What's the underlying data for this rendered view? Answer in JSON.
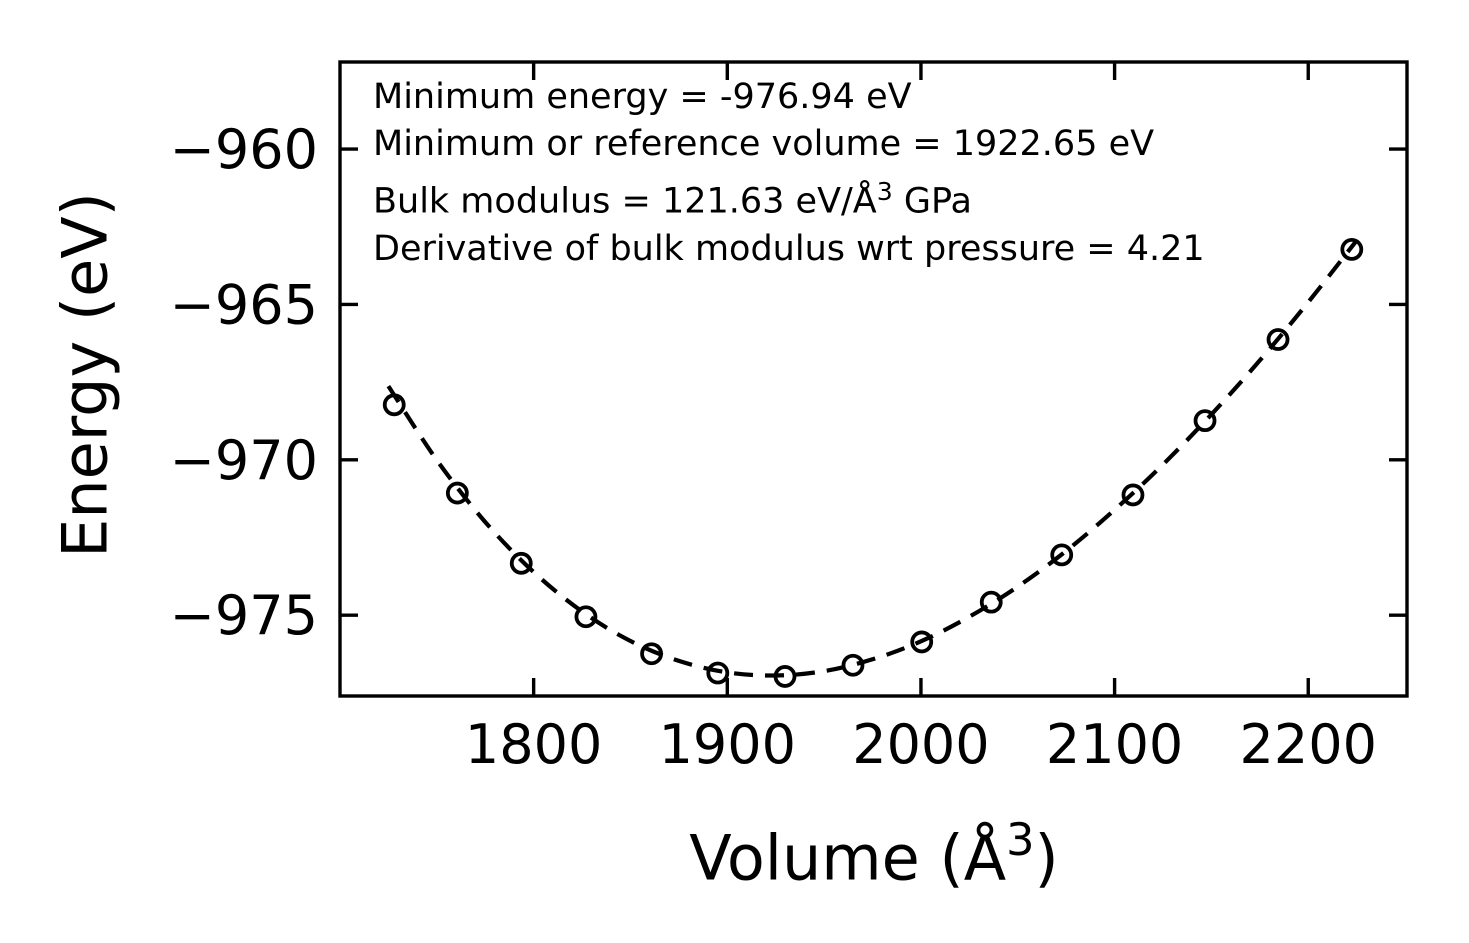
{
  "figure": {
    "ylabel": "Energy (eV)",
    "xlabel_prefix": "Volume (Å",
    "xlabel_sup": "3",
    "xlabel_suffix": ")",
    "annotation": {
      "line1": "Minimum energy = -976.94 eV",
      "line2": "Minimum or reference volume = 1922.65 eV",
      "line3_prefix": "Bulk modulus = 121.63 eV/Å",
      "line3_sup": "3",
      "line3_suffix": " GPa",
      "line4": "Derivative of bulk modulus wrt pressure = 4.21"
    },
    "line_color": "#000000",
    "background_color": "#ffffff"
  },
  "chart_data": {
    "type": "scatter",
    "title": "",
    "xlabel": "Volume (Å³)",
    "ylabel": "Energy (eV)",
    "xlim": [
      1700,
      2251
    ],
    "ylim": [
      -977.6,
      -957.2
    ],
    "grid": false,
    "legend": null,
    "xticks": [
      {
        "value": 1800,
        "label": "1800"
      },
      {
        "value": 1900,
        "label": "1900"
      },
      {
        "value": 2000,
        "label": "2000"
      },
      {
        "value": 2100,
        "label": "2100"
      },
      {
        "value": 2200,
        "label": "2200"
      }
    ],
    "yticks": [
      {
        "value": -960,
        "label": "−960"
      },
      {
        "value": -965,
        "label": "−965"
      },
      {
        "value": -970,
        "label": "−970"
      },
      {
        "value": -975,
        "label": "−975"
      }
    ],
    "series": [
      {
        "name": "calculated-energies",
        "type": "scatter",
        "marker": "open-circle",
        "color": "#000000",
        "x": [
          1728.0,
          1760.6,
          1793.6,
          1827.0,
          1860.9,
          1895.1,
          1929.8,
          1964.9,
          2000.4,
          2036.3,
          2072.7,
          2109.5,
          2146.7,
          2184.4,
          2222.5
        ],
        "y": [
          -968.23,
          -971.07,
          -973.33,
          -975.05,
          -976.24,
          -976.86,
          -976.97,
          -976.61,
          -975.86,
          -974.58,
          -973.06,
          -971.13,
          -968.74,
          -966.13,
          -963.23
        ]
      },
      {
        "name": "eos-fit-curve",
        "type": "line",
        "linestyle": "dashed",
        "color": "#000000",
        "x": [
          1725,
          1750,
          1775,
          1800,
          1825,
          1850,
          1875,
          1900,
          1925,
          1950,
          1975,
          2000,
          2025,
          2050,
          2075,
          2100,
          2125,
          2150,
          2175,
          2200,
          2225
        ],
        "y": [
          -967.63,
          -970.01,
          -972.0,
          -973.61,
          -974.88,
          -975.83,
          -976.47,
          -976.84,
          -976.94,
          -976.8,
          -976.42,
          -975.84,
          -975.05,
          -974.08,
          -972.93,
          -971.61,
          -970.15,
          -968.54,
          -966.8,
          -964.93,
          -962.94
        ]
      }
    ],
    "fit_parameters": {
      "minimum_energy_eV": -976.94,
      "reference_volume": 1922.65,
      "bulk_modulus": 121.63,
      "bulk_modulus_derivative_wrt_pressure": 4.21
    }
  }
}
